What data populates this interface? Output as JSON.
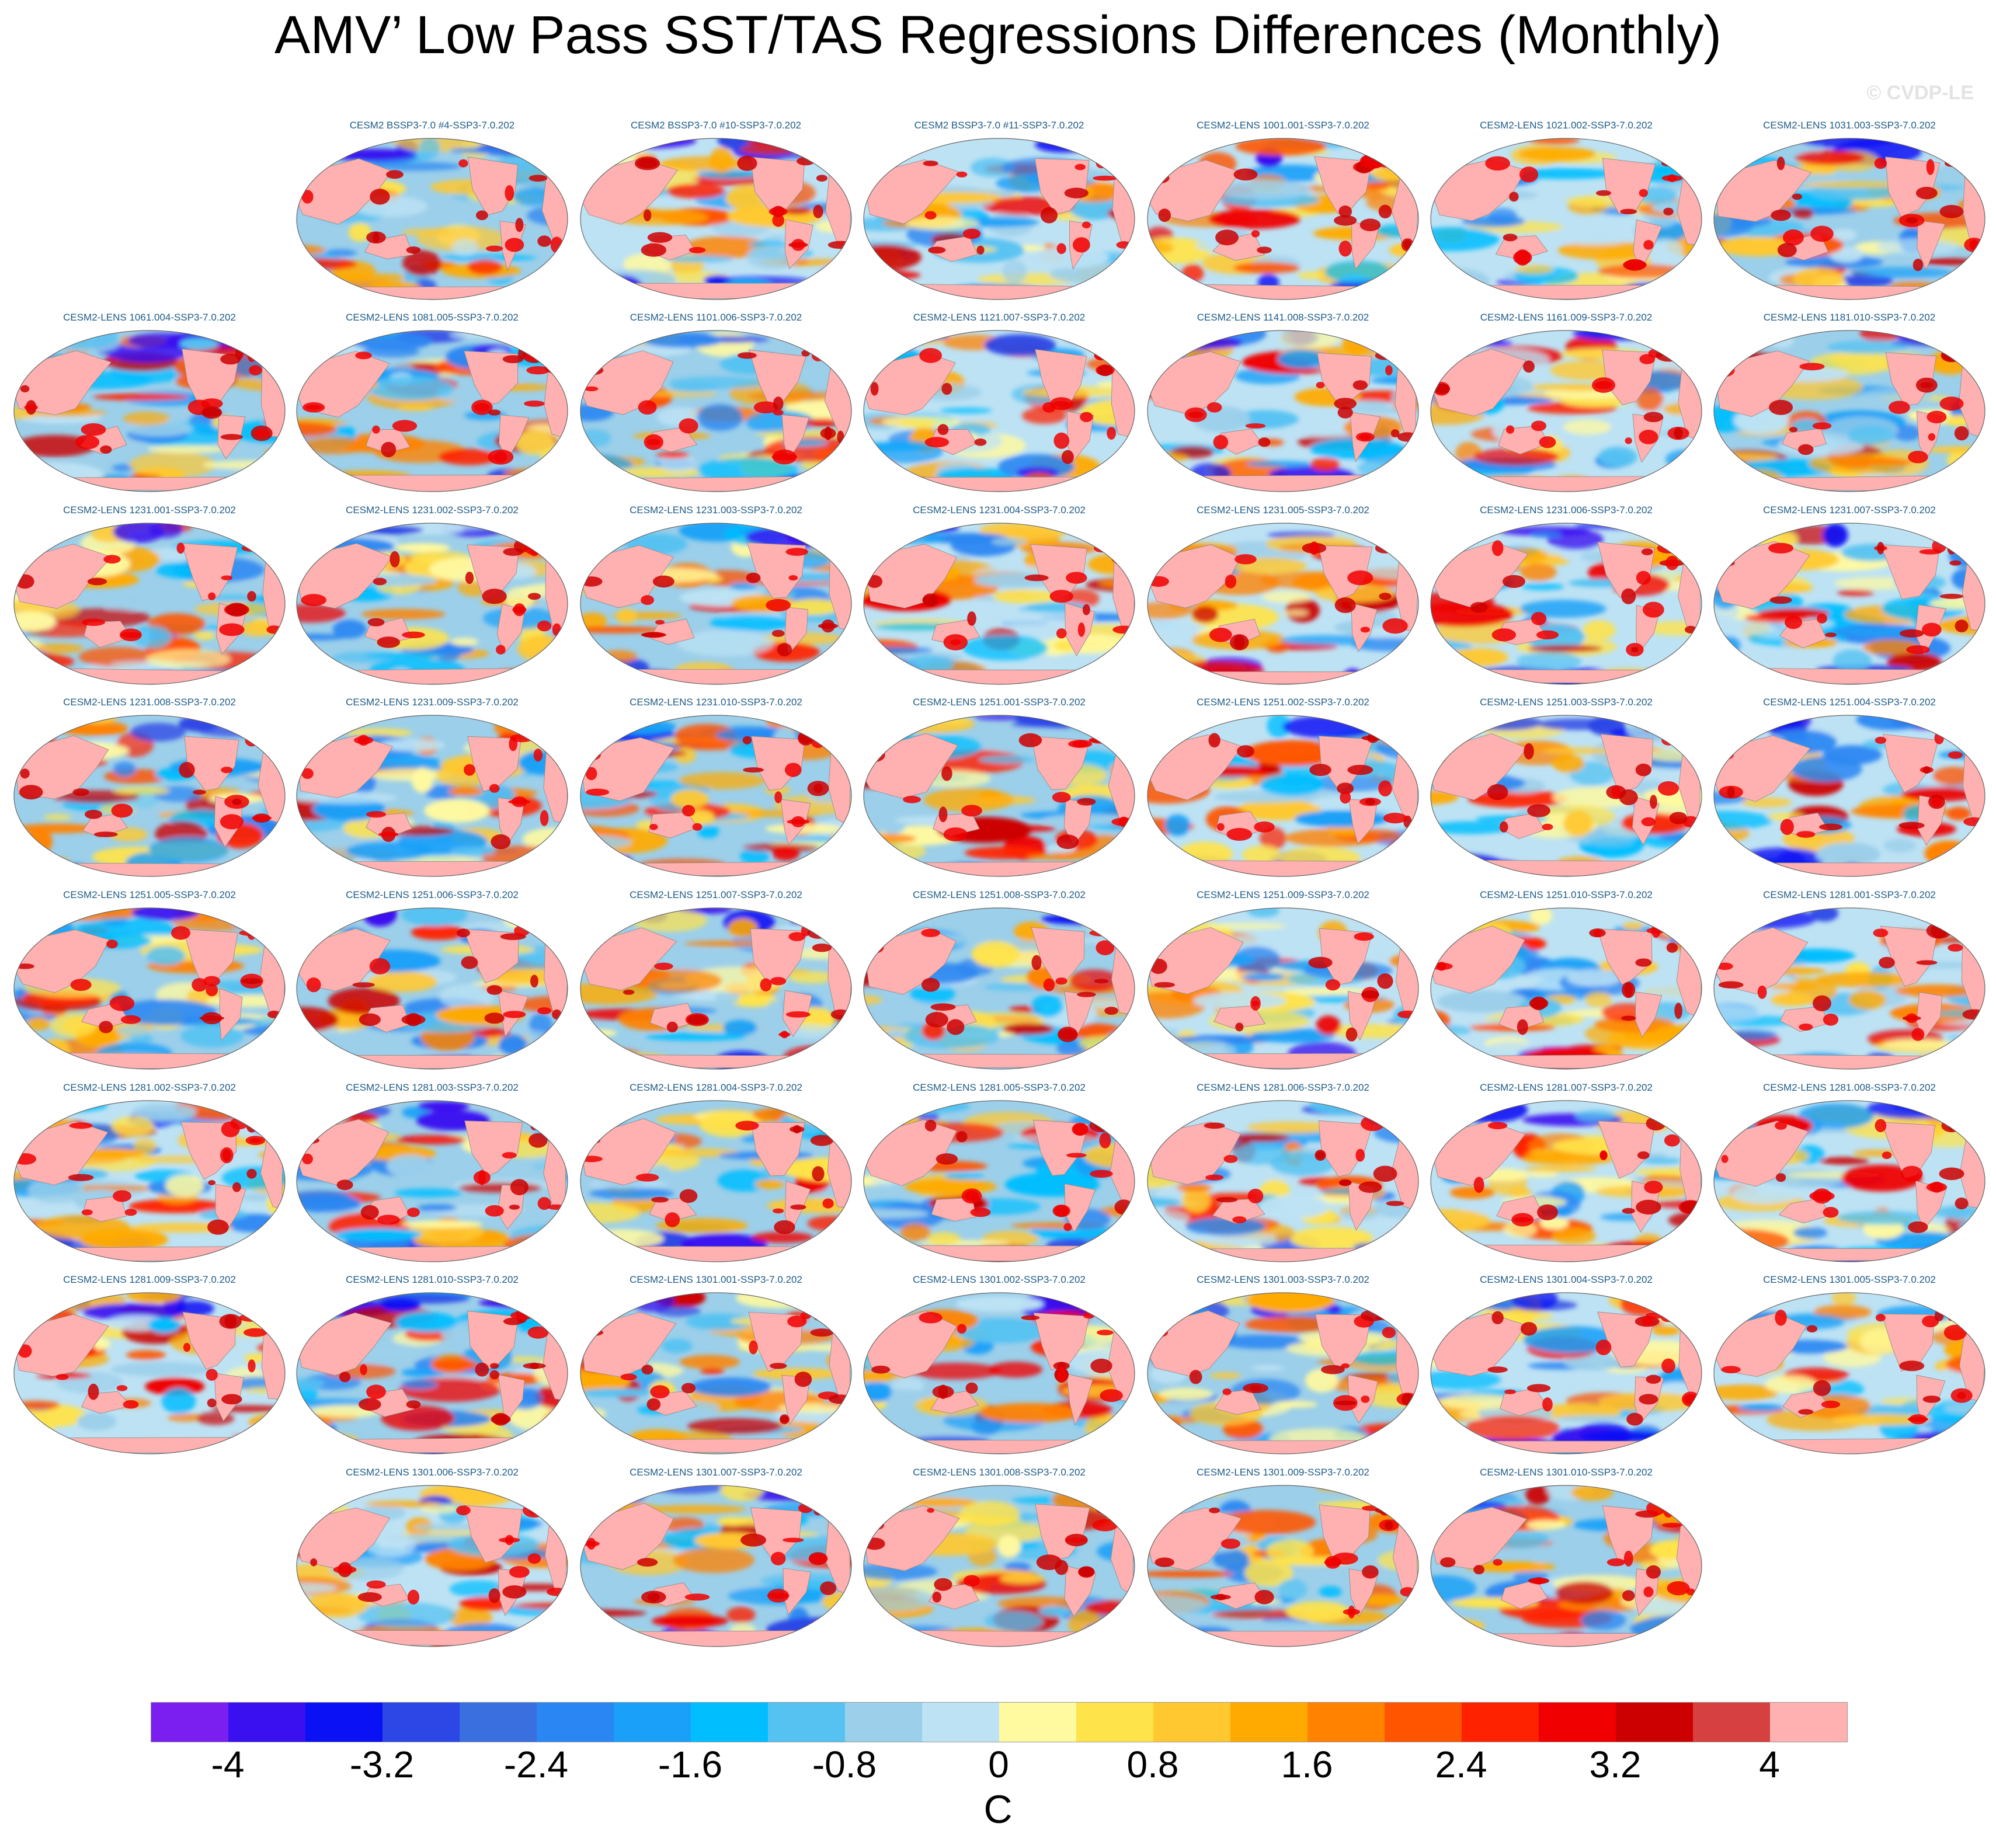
{
  "page": {
    "title": "AMV’ Low Pass SST/TAS Regressions Differences (Monthly)",
    "watermark": "© CVDP-LE"
  },
  "chart_data": {
    "type": "heatmap",
    "title": "AMV’ Low Pass SST/TAS Regressions Differences (Monthly)",
    "map_projection": "global Robinson-style ellipse, Pacific-centered",
    "panel_rows": [
      [
        "",
        "CESM2 BSSP3-7.0 #4-SSP3-7.0.202",
        "CESM2 BSSP3-7.0 #10-SSP3-7.0.202",
        "CESM2 BSSP3-7.0 #11-SSP3-7.0.202",
        "CESM2-LENS 1001.001-SSP3-7.0.202",
        "CESM2-LENS 1021.002-SSP3-7.0.202",
        "CESM2-LENS 1031.003-SSP3-7.0.202"
      ],
      [
        "CESM2-LENS 1061.004-SSP3-7.0.202",
        "CESM2-LENS 1081.005-SSP3-7.0.202",
        "CESM2-LENS 1101.006-SSP3-7.0.202",
        "CESM2-LENS 1121.007-SSP3-7.0.202",
        "CESM2-LENS 1141.008-SSP3-7.0.202",
        "CESM2-LENS 1161.009-SSP3-7.0.202",
        "CESM2-LENS 1181.010-SSP3-7.0.202"
      ],
      [
        "CESM2-LENS 1231.001-SSP3-7.0.202",
        "CESM2-LENS 1231.002-SSP3-7.0.202",
        "CESM2-LENS 1231.003-SSP3-7.0.202",
        "CESM2-LENS 1231.004-SSP3-7.0.202",
        "CESM2-LENS 1231.005-SSP3-7.0.202",
        "CESM2-LENS 1231.006-SSP3-7.0.202",
        "CESM2-LENS 1231.007-SSP3-7.0.202"
      ],
      [
        "CESM2-LENS 1231.008-SSP3-7.0.202",
        "CESM2-LENS 1231.009-SSP3-7.0.202",
        "CESM2-LENS 1231.010-SSP3-7.0.202",
        "CESM2-LENS 1251.001-SSP3-7.0.202",
        "CESM2-LENS 1251.002-SSP3-7.0.202",
        "CESM2-LENS 1251.003-SSP3-7.0.202",
        "CESM2-LENS 1251.004-SSP3-7.0.202"
      ],
      [
        "CESM2-LENS 1251.005-SSP3-7.0.202",
        "CESM2-LENS 1251.006-SSP3-7.0.202",
        "CESM2-LENS 1251.007-SSP3-7.0.202",
        "CESM2-LENS 1251.008-SSP3-7.0.202",
        "CESM2-LENS 1251.009-SSP3-7.0.202",
        "CESM2-LENS 1251.010-SSP3-7.0.202",
        "CESM2-LENS 1281.001-SSP3-7.0.202"
      ],
      [
        "CESM2-LENS 1281.002-SSP3-7.0.202",
        "CESM2-LENS 1281.003-SSP3-7.0.202",
        "CESM2-LENS 1281.004-SSP3-7.0.202",
        "CESM2-LENS 1281.005-SSP3-7.0.202",
        "CESM2-LENS 1281.006-SSP3-7.0.202",
        "CESM2-LENS 1281.007-SSP3-7.0.202",
        "CESM2-LENS 1281.008-SSP3-7.0.202"
      ],
      [
        "CESM2-LENS 1281.009-SSP3-7.0.202",
        "CESM2-LENS 1281.010-SSP3-7.0.202",
        "CESM2-LENS 1301.001-SSP3-7.0.202",
        "CESM2-LENS 1301.002-SSP3-7.0.202",
        "CESM2-LENS 1301.003-SSP3-7.0.202",
        "CESM2-LENS 1301.004-SSP3-7.0.202",
        "CESM2-LENS 1301.005-SSP3-7.0.202"
      ],
      [
        "",
        "CESM2-LENS 1301.006-SSP3-7.0.202",
        "CESM2-LENS 1301.007-SSP3-7.0.202",
        "CESM2-LENS 1301.008-SSP3-7.0.202",
        "CESM2-LENS 1301.009-SSP3-7.0.202",
        "CESM2-LENS 1301.010-SSP3-7.0.202",
        ""
      ]
    ],
    "colorbar": {
      "unit": "C",
      "min": -4.4,
      "max": 4.4,
      "step": 0.4,
      "tick_values": [
        -4,
        -3.2,
        -2.4,
        -1.6,
        -0.8,
        0,
        0.8,
        1.6,
        2.4,
        3.2,
        4
      ],
      "tick_labels": [
        "-4",
        "-3.2",
        "-2.4",
        "-1.6",
        "-0.8",
        "0",
        "0.8",
        "1.6",
        "2.4",
        "3.2",
        "4"
      ],
      "colors": [
        "#7b1ff0",
        "#3a0ff0",
        "#0a12f5",
        "#2d46e6",
        "#3a6fe0",
        "#2a86f2",
        "#1aa0f8",
        "#00beff",
        "#55c2f2",
        "#9ccfea",
        "#bde2f4",
        "#fff9a0",
        "#ffe34a",
        "#ffc830",
        "#ffaa00",
        "#ff8200",
        "#ff5500",
        "#ff2200",
        "#f00000",
        "#cc0000",
        "#d64040",
        "#ffb0b0"
      ]
    }
  }
}
